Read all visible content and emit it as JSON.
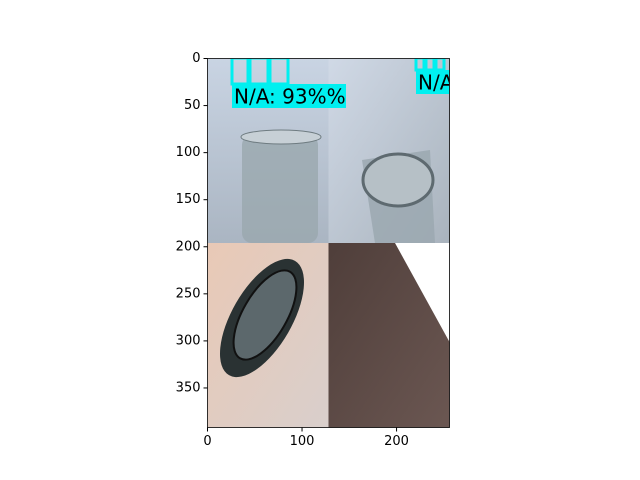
{
  "chart_data": {
    "type": "image",
    "annotations": [
      "N/A: 93%%",
      "N/A"
    ],
    "xlim": [
      0,
      256
    ],
    "ylim": [
      392,
      0
    ],
    "xticks": [
      0,
      100,
      200
    ],
    "yticks": [
      0,
      50,
      100,
      150,
      200,
      250,
      300,
      350
    ]
  }
}
